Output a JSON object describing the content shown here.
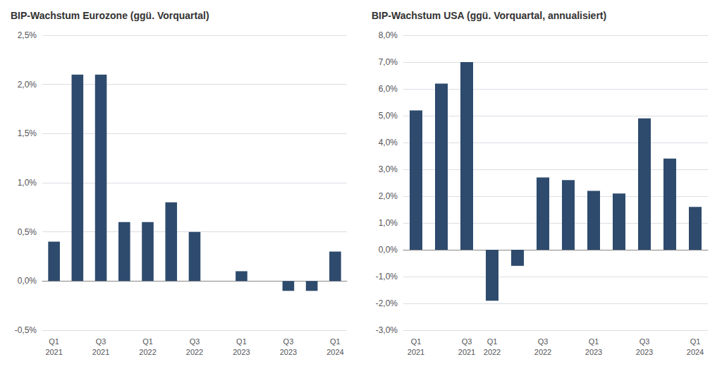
{
  "chart_data": [
    {
      "type": "bar",
      "title": "BIP-Wachstum Eurozone (ggü. Vorquartal)",
      "categories": [
        "Q1\n2021",
        null,
        "Q3\n2021",
        null,
        "Q1\n2022",
        null,
        "Q3\n2022",
        null,
        "Q1\n2023",
        null,
        "Q3\n2023",
        null,
        "Q1\n2024"
      ],
      "values": [
        0.4,
        2.1,
        2.1,
        0.6,
        0.6,
        0.8,
        0.5,
        0.0,
        0.1,
        0.0,
        -0.1,
        -0.1,
        0.3
      ],
      "color": "#2E4B6E",
      "ylim": [
        -0.5,
        2.5
      ],
      "yticks": [
        {
          "value": -0.5,
          "label": "-0,5%"
        },
        {
          "value": 0.0,
          "label": "0,0%"
        },
        {
          "value": 0.5,
          "label": "0,5%"
        },
        {
          "value": 1.0,
          "label": "1,0%"
        },
        {
          "value": 1.5,
          "label": "1,5%"
        },
        {
          "value": 2.0,
          "label": "2,0%"
        },
        {
          "value": 2.5,
          "label": "2,5%"
        }
      ],
      "grid": true
    },
    {
      "type": "bar",
      "title": "BIP-Wachstum USA (ggü. Vorquartal, annualisiert)",
      "categories": [
        "Q1\n2021",
        null,
        "Q3\n2021",
        "Q1\n2022",
        null,
        "Q3\n2022",
        null,
        "Q1\n2023",
        null,
        "Q3\n2023",
        null,
        "Q1\n2024"
      ],
      "values": [
        5.2,
        6.2,
        7.0,
        -1.9,
        -0.6,
        2.7,
        2.6,
        2.2,
        2.1,
        4.9,
        3.4,
        1.6
      ],
      "color": "#2E4B6E",
      "ylim": [
        -3.0,
        8.0
      ],
      "yticks": [
        {
          "value": -3.0,
          "label": "-3,0%"
        },
        {
          "value": -2.0,
          "label": "-2,0%"
        },
        {
          "value": -1.0,
          "label": "-1,0%"
        },
        {
          "value": 0.0,
          "label": "0,0%"
        },
        {
          "value": 1.0,
          "label": "1,0%"
        },
        {
          "value": 2.0,
          "label": "2,0%"
        },
        {
          "value": 3.0,
          "label": "3,0%"
        },
        {
          "value": 4.0,
          "label": "4,0%"
        },
        {
          "value": 5.0,
          "label": "5,0%"
        },
        {
          "value": 6.0,
          "label": "6,0%"
        },
        {
          "value": 7.0,
          "label": "7,0%"
        },
        {
          "value": 8.0,
          "label": "8,0%"
        }
      ],
      "grid": true
    }
  ]
}
